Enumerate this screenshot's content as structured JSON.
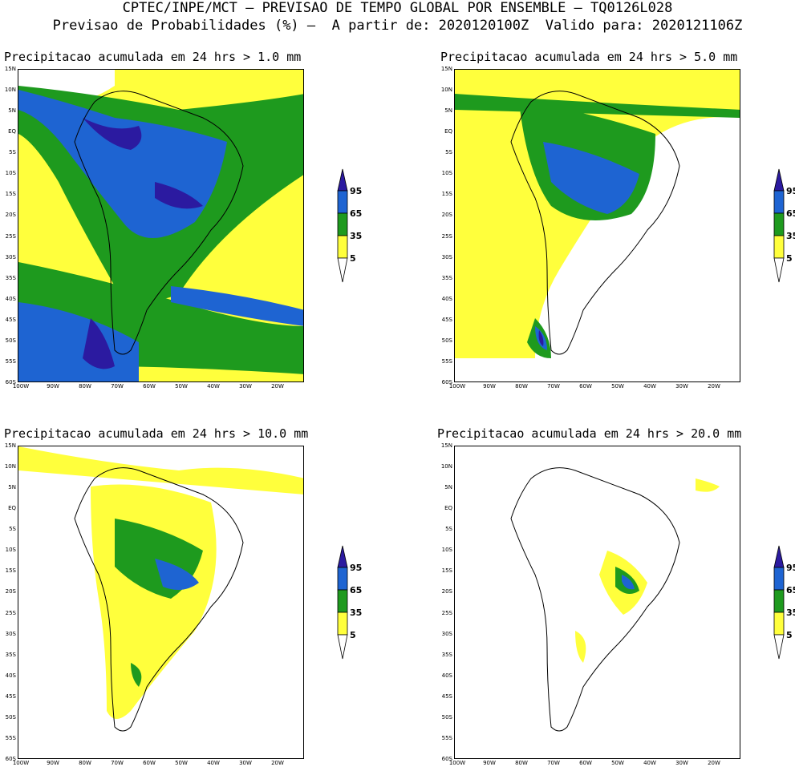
{
  "header": {
    "line1": "CPTEC/INPE/MCT – PREVISAO DE TEMPO GLOBAL POR ENSEMBLE – TQ0126L028",
    "line2": "Previsao de Probabilidades (%) –  A partir de: 2020120100Z  Valido para: 2020121106Z"
  },
  "colors": {
    "c5": "#ffff3c",
    "c35": "#1e9a1e",
    "c65": "#1e64d2",
    "c95": "#2b1aa0"
  },
  "legend": {
    "labels": [
      "95",
      "65",
      "35",
      "5"
    ]
  },
  "axes": {
    "lat_labels": [
      "15N",
      "10N",
      "5N",
      "EQ",
      "5S",
      "10S",
      "15S",
      "20S",
      "25S",
      "30S",
      "35S",
      "40S",
      "45S",
      "50S",
      "55S",
      "60S"
    ],
    "lon_labels": [
      "100W",
      "90W",
      "80W",
      "70W",
      "60W",
      "50W",
      "40W",
      "30W",
      "20W"
    ]
  },
  "panels": [
    {
      "title": "Precipitacao acumulada em 24 hrs > 1.0 mm",
      "threshold": "1.0"
    },
    {
      "title": "Precipitacao acumulada em 24 hrs > 5.0 mm",
      "threshold": "5.0"
    },
    {
      "title": "Precipitacao acumulada em 24 hrs > 10.0 mm",
      "threshold": "10.0"
    },
    {
      "title": "Precipitacao acumulada em 24 hrs > 20.0 mm",
      "threshold": "20.0"
    }
  ]
}
